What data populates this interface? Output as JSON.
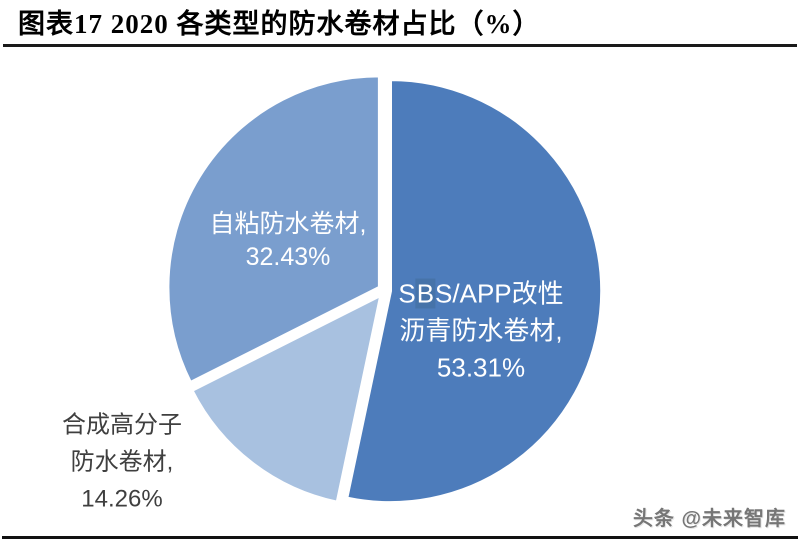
{
  "title": "图表17 2020 各类型的防水卷材占比（%）",
  "watermark": "头条 @未来智库",
  "colors": {
    "slice_sbs": "#4d7cbb",
    "slice_self_adhesive": "#7a9ece",
    "slice_synthetic": "#a8c1e0",
    "inside_label_text": "#ffffff",
    "outside_label_text": "#3f3f3f",
    "rule": "#1a1a1a"
  },
  "chart_data": {
    "type": "pie",
    "title": "图表17 2020 各类型的防水卷材占比（%）",
    "unit": "%",
    "start_angle_deg": 0,
    "direction": "clockwise",
    "explode": true,
    "legend": "none",
    "slices": [
      {
        "id": "sbs-app",
        "name": "SBS/APP改性沥青防水卷材",
        "value": 53.31,
        "color": "#4d7cbb",
        "label_position": "inside"
      },
      {
        "id": "synthetic-polymer",
        "name": "合成高分子防水卷材",
        "value": 14.26,
        "color": "#a8c1e0",
        "label_position": "outside"
      },
      {
        "id": "self-adhesive",
        "name": "自粘防水卷材",
        "value": 32.43,
        "color": "#7a9ece",
        "label_position": "inside"
      }
    ]
  },
  "labels": {
    "self_adhesive": {
      "line1": "自粘防水卷材,",
      "line2": "32.43%"
    },
    "sbs": {
      "line1_pre": "S",
      "line1_hl": "B",
      "line1_post": "S/APP改性",
      "line2": "沥青防水卷材,",
      "line3": "53.31%"
    },
    "synthetic": {
      "line1": "合成高分子",
      "line2": "防水卷材,",
      "line3": "14.26%"
    }
  }
}
